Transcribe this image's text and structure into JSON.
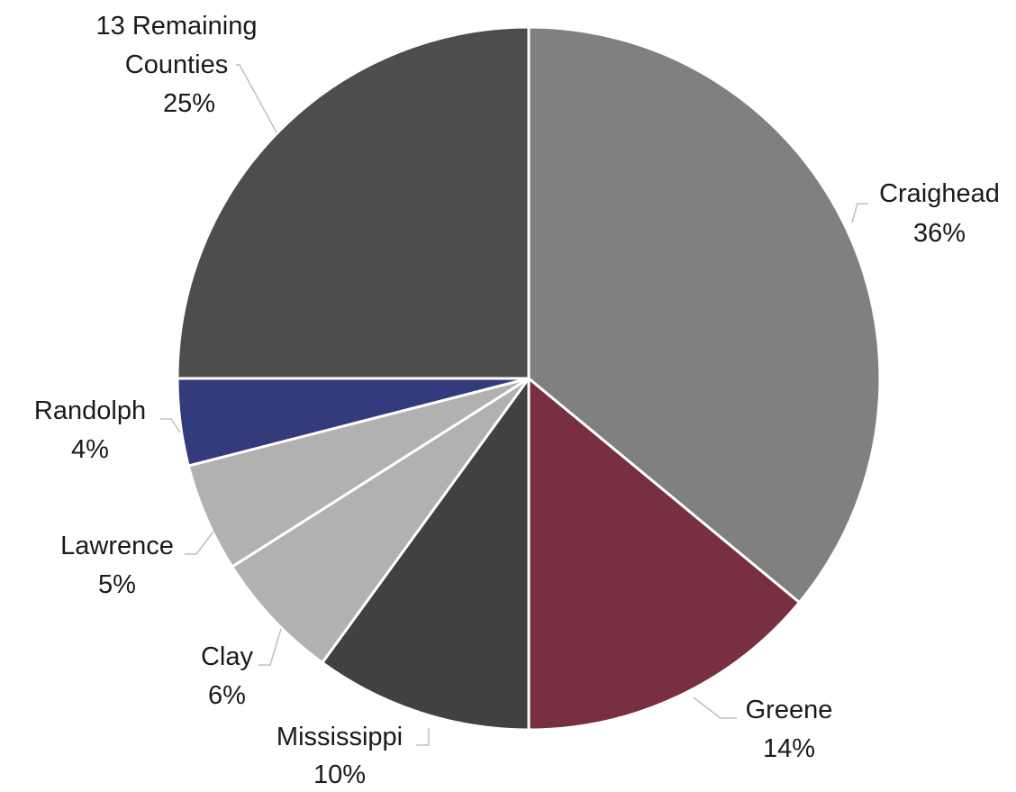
{
  "chart_data": {
    "type": "pie",
    "title": "",
    "start_angle_deg": 0,
    "direction": "clockwise",
    "slices": [
      {
        "label": "Craighead",
        "value": 36,
        "display": "36%",
        "color": "#808080"
      },
      {
        "label": "Greene",
        "value": 14,
        "display": "14%",
        "color": "#782F40"
      },
      {
        "label": "Mississippi",
        "value": 10,
        "display": "10%",
        "color": "#414042"
      },
      {
        "label": "Clay",
        "value": 6,
        "display": "6%",
        "color": "#B1B1B1"
      },
      {
        "label": "Lawrence",
        "value": 5,
        "display": "5%",
        "color": "#B1B1B1"
      },
      {
        "label": "Randolph",
        "value": 4,
        "display": "4%",
        "color": "#343B7C"
      },
      {
        "label": "13 Remaining Counties",
        "value": 25,
        "display": "25%",
        "color": "#4D4D4D"
      }
    ]
  }
}
